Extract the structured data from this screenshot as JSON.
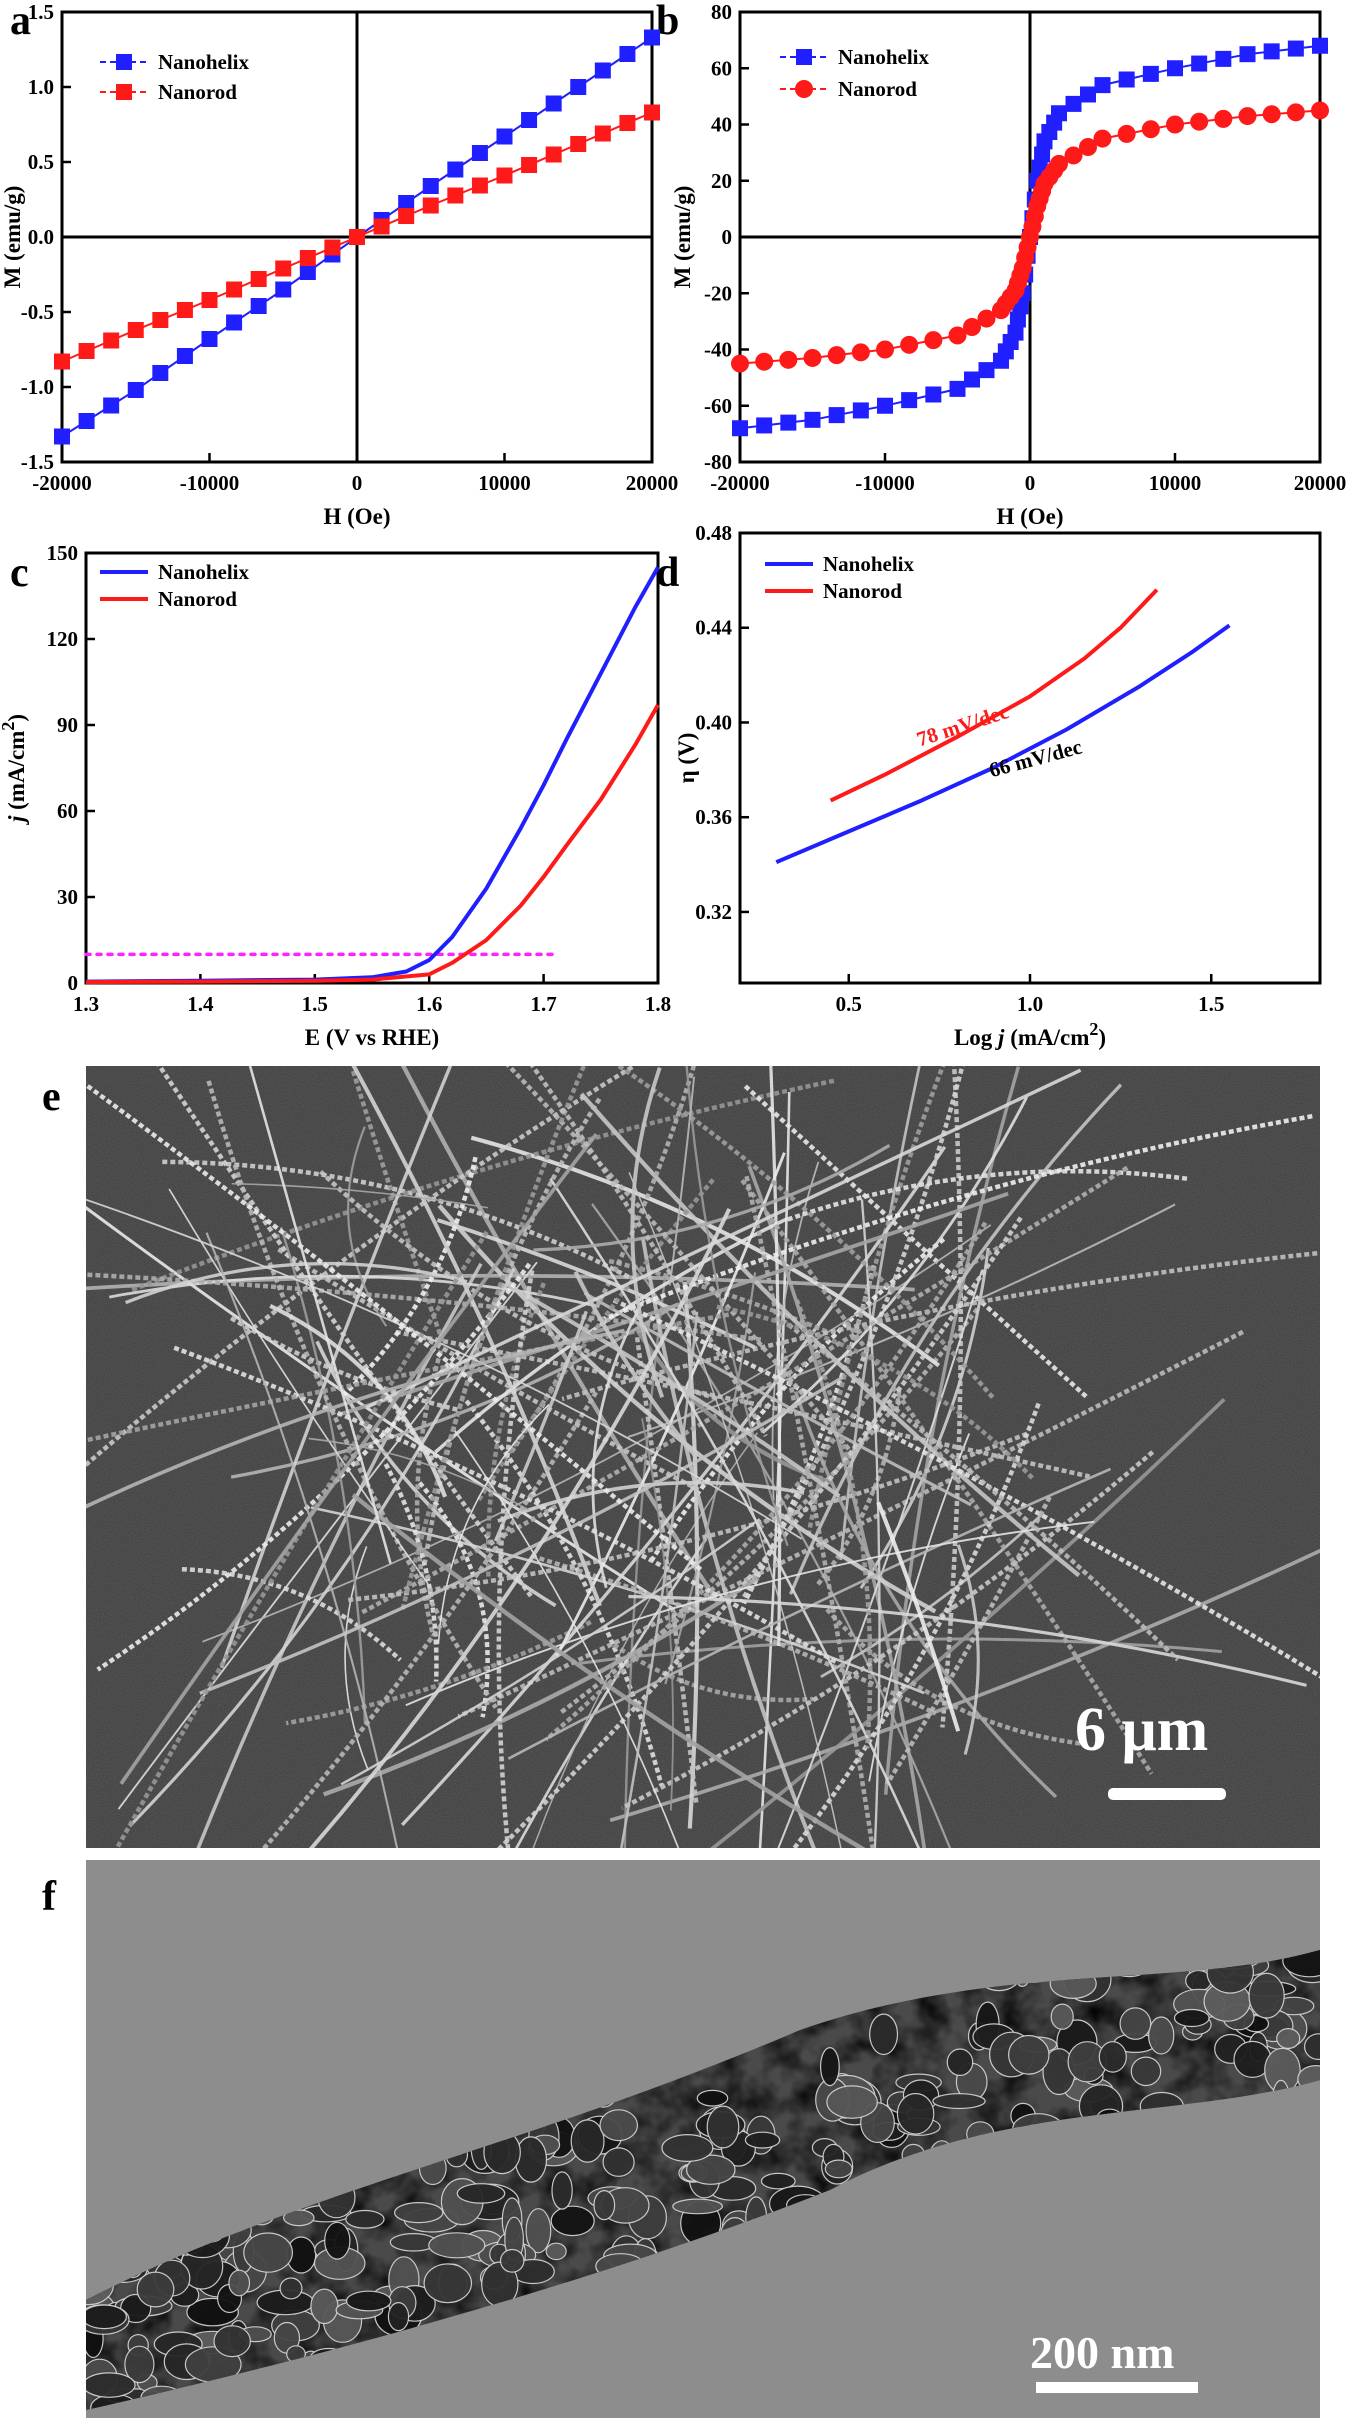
{
  "colors": {
    "blue": "#1f1fff",
    "red": "#ff1a1a",
    "magenta": "#ff22ff",
    "axis": "#000000",
    "sem_bg": "#3c3c3c",
    "tem_bg": "#8a8a8a"
  },
  "chart_data": [
    {
      "panel": "a",
      "type": "scatter",
      "xlabel": "H (Oe)",
      "ylabel": "M (emu/g)",
      "xlim": [
        -20000,
        20000
      ],
      "ylim": [
        -1.5,
        1.5
      ],
      "xticks": [
        -20000,
        -10000,
        0,
        10000,
        20000
      ],
      "yticks": [
        -1.5,
        -1.0,
        -0.5,
        0.0,
        0.5,
        1.0,
        1.5
      ],
      "ytick_labels": [
        "-1.5",
        "-1.0",
        "-0.5",
        "0.0",
        "0.5",
        "1.0",
        "1.5"
      ],
      "legend_position": "top-left",
      "series": [
        {
          "name": "Nanohelix",
          "color": "#1f1fff",
          "marker": "square",
          "x": [
            -20000,
            -15000,
            -10000,
            -5000,
            0,
            5000,
            10000,
            15000,
            20000
          ],
          "y": [
            -1.33,
            -1.02,
            -0.68,
            -0.35,
            0.0,
            0.34,
            0.67,
            1.0,
            1.33
          ]
        },
        {
          "name": "Nanorod",
          "color": "#ff1a1a",
          "marker": "square",
          "x": [
            -20000,
            -15000,
            -10000,
            -5000,
            0,
            5000,
            10000,
            15000,
            20000
          ],
          "y": [
            -0.83,
            -0.62,
            -0.42,
            -0.21,
            0.0,
            0.21,
            0.41,
            0.62,
            0.83
          ]
        }
      ]
    },
    {
      "panel": "b",
      "type": "scatter",
      "xlabel": "H (Oe)",
      "ylabel": "M (emu/g)",
      "xlim": [
        -20000,
        20000
      ],
      "ylim": [
        -80,
        80
      ],
      "xticks": [
        -20000,
        -10000,
        0,
        10000,
        20000
      ],
      "yticks": [
        -80,
        -60,
        -40,
        -20,
        0,
        20,
        40,
        60,
        80
      ],
      "ytick_labels": [
        "-80",
        "-60",
        "-40",
        "-20",
        "0",
        "20",
        "40",
        "60",
        "80"
      ],
      "legend_position": "top-left",
      "series": [
        {
          "name": "Nanohelix",
          "color": "#1f1fff",
          "marker": "square",
          "x": [
            -20000,
            -15000,
            -10000,
            -5000,
            -2000,
            -1000,
            -500,
            0,
            500,
            1000,
            2000,
            5000,
            10000,
            15000,
            20000
          ],
          "y": [
            -68,
            -65,
            -60,
            -54,
            -44,
            -34,
            -20,
            0,
            20,
            34,
            44,
            54,
            60,
            65,
            68
          ]
        },
        {
          "name": "Nanorod",
          "color": "#ff1a1a",
          "marker": "circle",
          "x": [
            -20000,
            -15000,
            -10000,
            -5000,
            -2000,
            -1000,
            -500,
            0,
            500,
            1000,
            2000,
            5000,
            10000,
            15000,
            20000
          ],
          "y": [
            -45,
            -43,
            -40,
            -35,
            -26,
            -19,
            -11,
            0,
            11,
            19,
            26,
            35,
            40,
            43,
            45
          ]
        }
      ]
    },
    {
      "panel": "c",
      "type": "line",
      "xlabel": "E (V vs RHE)",
      "ylabel_parts": [
        "j",
        " (mA/cm",
        "2",
        ")"
      ],
      "xlim": [
        1.3,
        1.8
      ],
      "ylim": [
        0,
        150
      ],
      "xticks": [
        1.3,
        1.4,
        1.5,
        1.6,
        1.7,
        1.8
      ],
      "xtick_labels": [
        "1.3",
        "1.4",
        "1.5",
        "1.6",
        "1.7",
        "1.8"
      ],
      "yticks": [
        0,
        30,
        60,
        90,
        120,
        150
      ],
      "ytick_labels": [
        "0",
        "30",
        "60",
        "90",
        "120",
        "150"
      ],
      "legend_position": "top-left",
      "reference_line": {
        "y": 10,
        "x": [
          1.3,
          1.71
        ],
        "color": "#ff22ff"
      },
      "series": [
        {
          "name": "Nanohelix",
          "color": "#1f1fff",
          "x": [
            1.3,
            1.4,
            1.5,
            1.55,
            1.58,
            1.6,
            1.62,
            1.65,
            1.68,
            1.7,
            1.72,
            1.75,
            1.78,
            1.8
          ],
          "y": [
            0.5,
            0.8,
            1.2,
            2,
            4,
            8,
            16,
            33,
            54,
            69,
            85,
            108,
            131,
            145
          ]
        },
        {
          "name": "Nanorod",
          "color": "#ff1a1a",
          "x": [
            1.3,
            1.4,
            1.5,
            1.55,
            1.6,
            1.62,
            1.65,
            1.68,
            1.7,
            1.72,
            1.75,
            1.78,
            1.8
          ],
          "y": [
            0.3,
            0.5,
            0.8,
            1.2,
            3,
            7,
            15,
            27,
            37,
            48,
            64,
            83,
            97
          ]
        }
      ]
    },
    {
      "panel": "d",
      "type": "line",
      "xlabel_parts": [
        "Log ",
        "j",
        " (mA/cm",
        "2",
        ")"
      ],
      "ylabel": "η (V)",
      "xlim": [
        0.2,
        1.8
      ],
      "ylim": [
        0.29,
        0.48
      ],
      "xticks": [
        0.5,
        1.0,
        1.5
      ],
      "xtick_labels": [
        "0.5",
        "1.0",
        "1.5"
      ],
      "yticks": [
        0.32,
        0.36,
        0.4,
        0.44,
        0.48
      ],
      "ytick_labels": [
        "0.32",
        "0.36",
        "0.40",
        "0.44",
        "0.48"
      ],
      "legend_position": "top-left",
      "series": [
        {
          "name": "Nanohelix",
          "color": "#1f1fff",
          "x": [
            0.3,
            0.5,
            0.7,
            0.9,
            1.1,
            1.3,
            1.45,
            1.55
          ],
          "y": [
            0.341,
            0.354,
            0.367,
            0.381,
            0.397,
            0.415,
            0.43,
            0.441
          ]
        },
        {
          "name": "Nanorod",
          "color": "#ff1a1a",
          "x": [
            0.45,
            0.6,
            0.8,
            1.0,
            1.15,
            1.25,
            1.35
          ],
          "y": [
            0.367,
            0.378,
            0.394,
            0.411,
            0.427,
            0.44,
            0.456
          ]
        }
      ],
      "annotations": [
        {
          "text": "78 mV/dec",
          "color": "#ff1a1a",
          "x": 0.82,
          "y": 0.396,
          "rotate": -18
        },
        {
          "text": "66 mV/dec",
          "color": "#000000",
          "x": 1.02,
          "y": 0.382,
          "rotate": -15
        }
      ]
    }
  ],
  "panel_labels": [
    "a",
    "b",
    "c",
    "d",
    "e",
    "f"
  ],
  "images": {
    "e": {
      "scale_bar_label": "6 μm"
    },
    "f": {
      "scale_bar_label": "200 nm"
    }
  }
}
